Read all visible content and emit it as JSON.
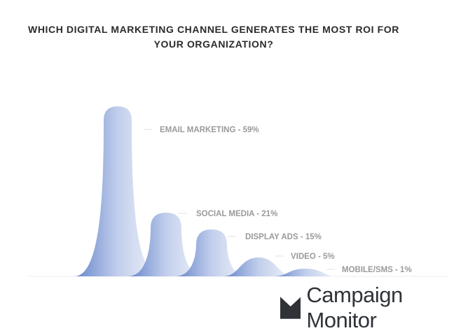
{
  "chart_data": {
    "type": "area",
    "title": "WHICH DIGITAL MARKETING CHANNEL GENERATES THE MOST ROI FOR YOUR ORGANIZATION?",
    "categories": [
      "EMAIL MARKETING",
      "SOCIAL MEDIA",
      "DISPLAY ADS",
      "VIDEO",
      "MOBILE/SMS"
    ],
    "values": [
      59,
      21,
      15,
      5,
      1
    ],
    "labels": [
      "EMAIL MARKETING - 59%",
      "SOCIAL MEDIA - 21%",
      "DISPLAY ADS - 15%",
      "VIDEO - 5%",
      "MOBILE/SMS - 1%"
    ],
    "colors": {
      "dark": "#5a7cc6",
      "light": "#eef0f9",
      "label": "#9a9a9a"
    }
  },
  "brand": {
    "name": "Campaign Monitor"
  }
}
